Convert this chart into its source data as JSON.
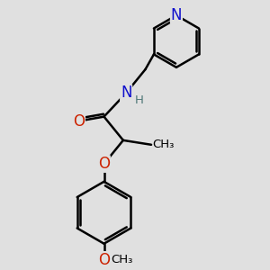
{
  "background_color": "#e0e0e0",
  "atom_colors": {
    "C": "#000000",
    "N": "#1010cc",
    "O": "#cc2200",
    "H": "#507878"
  },
  "bond_color": "#000000",
  "bond_width": 1.8,
  "font_size_atoms": 12,
  "font_size_small": 9.5
}
